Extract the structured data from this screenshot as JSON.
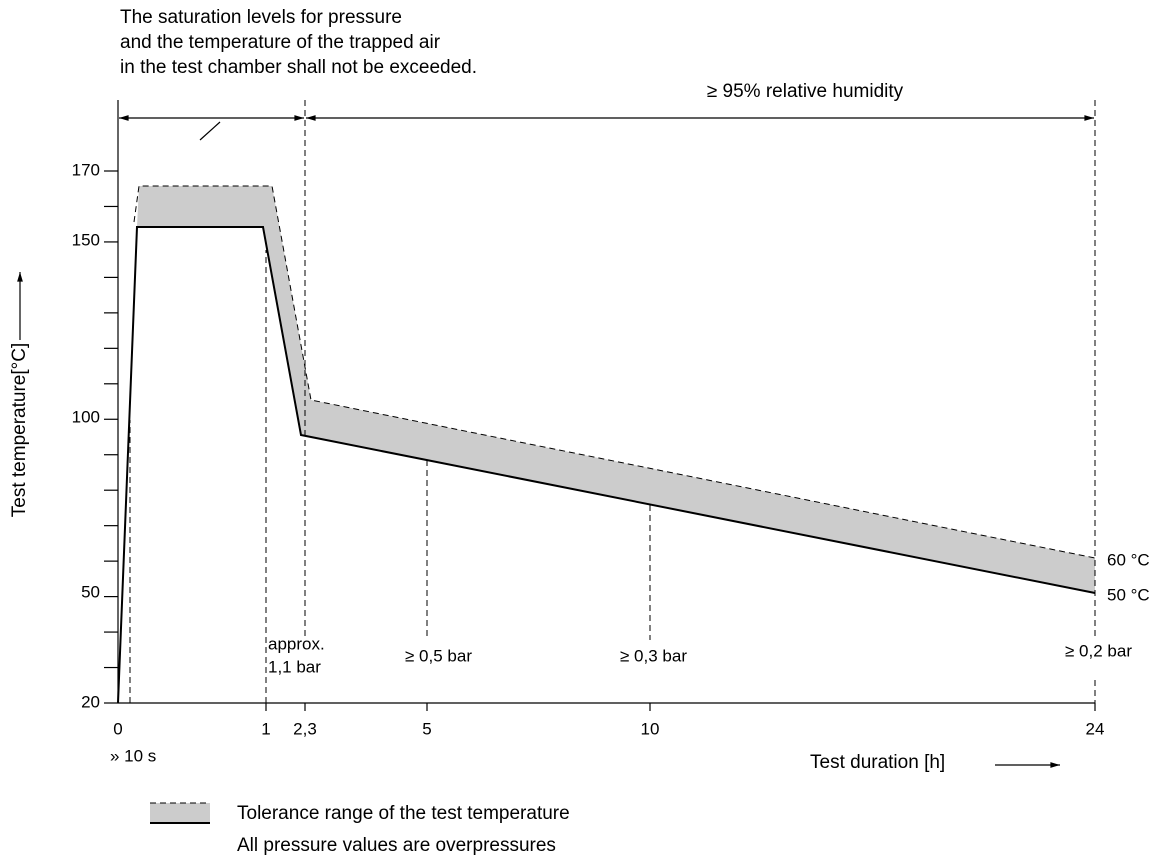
{
  "annotation": [
    "The saturation levels for pressure",
    "and the temperature of the trapped air",
    "in the test chamber shall not be exceeded."
  ],
  "humidity": "≥ 95% relative humidity",
  "y_axis": {
    "title": "Test temperature[°C]",
    "ticks": [
      "170",
      "150",
      "100",
      "50",
      "20"
    ]
  },
  "x_axis": {
    "title": "Test duration [h]",
    "ticks": [
      "0",
      "1",
      "2,3",
      "5",
      "10",
      "24"
    ],
    "start_note": "» 10 s"
  },
  "pressures": [
    "approx.",
    "1,1 bar",
    "≥ 0,5 bar",
    "≥ 0,3 bar",
    "≥ 0,2 bar"
  ],
  "end_temps": [
    "60 °C",
    "50 °C"
  ],
  "legend": [
    "Tolerance range of the test temperature",
    "All pressure values are overpressures"
  ]
}
